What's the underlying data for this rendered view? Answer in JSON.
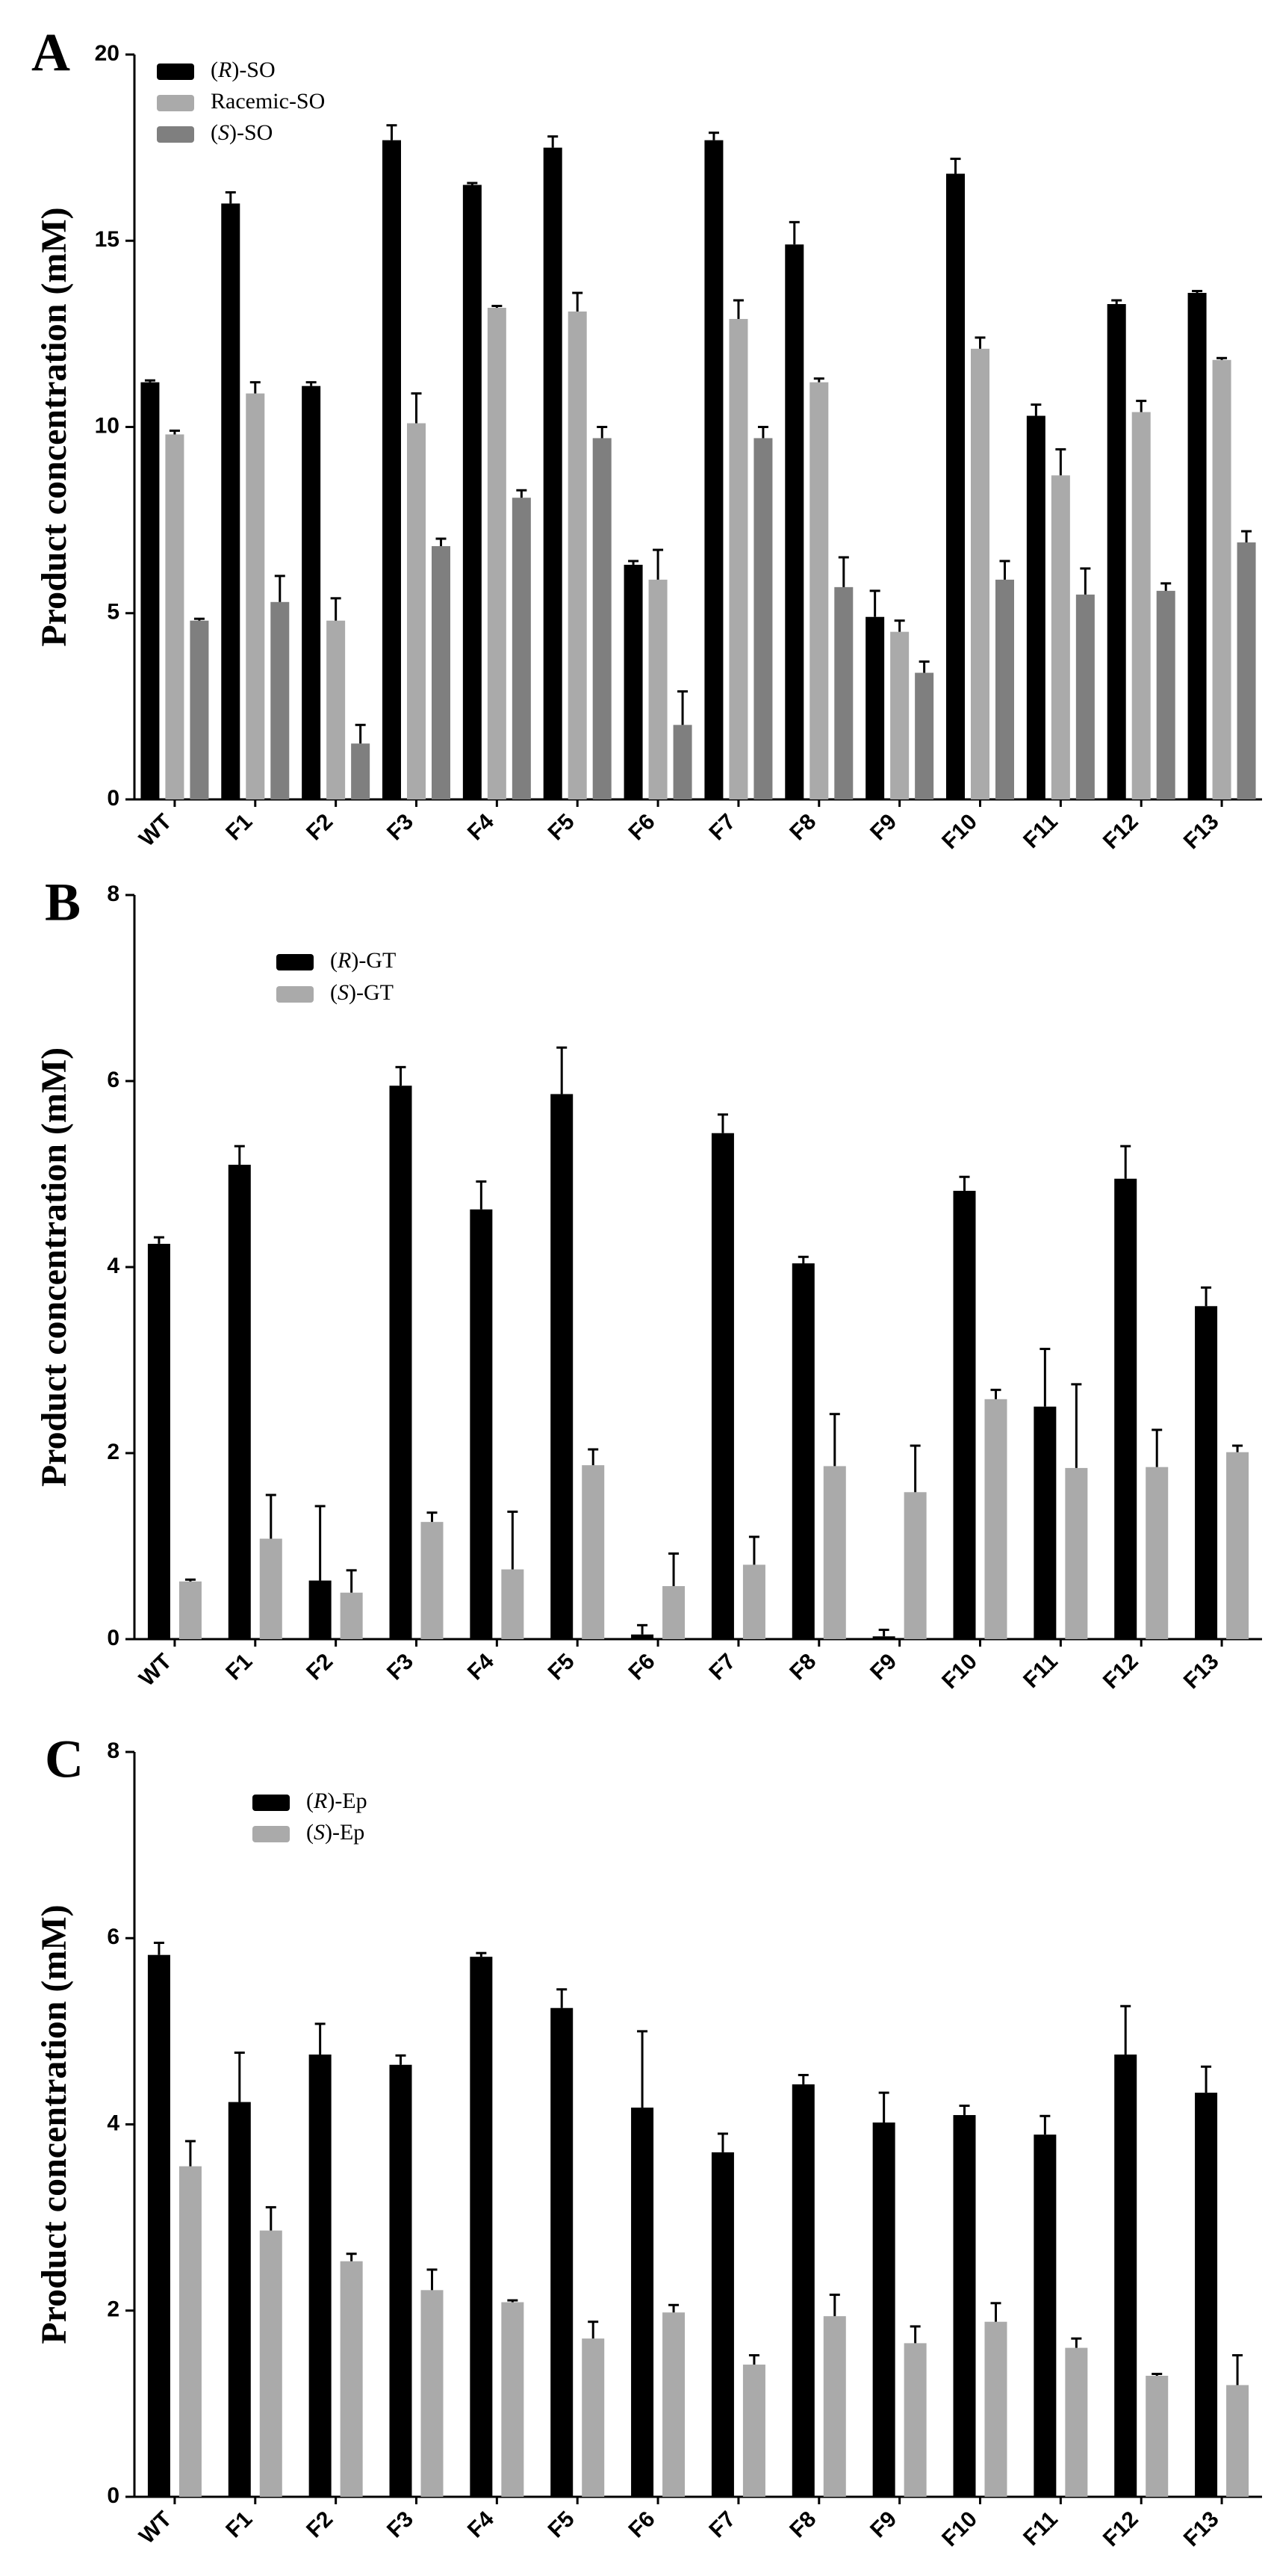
{
  "chart_data": [
    {
      "panel": "A",
      "type": "bar",
      "ylabel": "Product concentration (mM)",
      "xlabel": "",
      "ylim": [
        0,
        20
      ],
      "yticks": [
        0,
        5,
        10,
        15,
        20
      ],
      "categories": [
        "WT",
        "F1",
        "F2",
        "F3",
        "F4",
        "F5",
        "F6",
        "F7",
        "F8",
        "F9",
        "F10",
        "F11",
        "F12",
        "F13"
      ],
      "legend_position": "top-left",
      "series": [
        {
          "name": "(R)-SO",
          "label_prefix": "(",
          "label_italic": "R",
          "label_suffix": ")-SO",
          "color": "#000000",
          "values": [
            11.2,
            16.0,
            11.1,
            17.7,
            16.5,
            17.5,
            6.3,
            17.7,
            14.9,
            4.9,
            16.8,
            10.3,
            13.3,
            13.6
          ],
          "errors": [
            0.05,
            0.3,
            0.1,
            0.4,
            0.05,
            0.3,
            0.1,
            0.2,
            0.6,
            0.7,
            0.4,
            0.3,
            0.1,
            0.05
          ]
        },
        {
          "name": "Racemic-SO",
          "label_prefix": "Racemic-SO",
          "label_italic": "",
          "label_suffix": "",
          "color": "#aaaaaa",
          "values": [
            9.8,
            10.9,
            4.8,
            10.1,
            13.2,
            13.1,
            5.9,
            12.9,
            11.2,
            4.5,
            12.1,
            8.7,
            10.4,
            11.8
          ],
          "errors": [
            0.1,
            0.3,
            0.6,
            0.8,
            0.05,
            0.5,
            0.8,
            0.5,
            0.1,
            0.3,
            0.3,
            0.7,
            0.3,
            0.05
          ]
        },
        {
          "name": "(S)-SO",
          "label_prefix": "(",
          "label_italic": "S",
          "label_suffix": ")-SO",
          "color": "#7f7f7f",
          "values": [
            4.8,
            5.3,
            1.5,
            6.8,
            8.1,
            9.7,
            2.0,
            9.7,
            5.7,
            3.4,
            5.9,
            5.5,
            5.6,
            6.9
          ],
          "errors": [
            0.05,
            0.7,
            0.5,
            0.2,
            0.2,
            0.3,
            0.9,
            0.3,
            0.8,
            0.3,
            0.5,
            0.7,
            0.2,
            0.3
          ]
        }
      ]
    },
    {
      "panel": "B",
      "type": "bar",
      "ylabel": "Product concentration (mM)",
      "xlabel": "",
      "ylim": [
        0,
        8
      ],
      "yticks": [
        0,
        2,
        4,
        6,
        8
      ],
      "categories": [
        "WT",
        "F1",
        "F2",
        "F3",
        "F4",
        "F5",
        "F6",
        "F7",
        "F8",
        "F9",
        "F10",
        "F11",
        "F12",
        "F13"
      ],
      "legend_position": "top-left",
      "series": [
        {
          "name": "(R)-GT",
          "label_prefix": "(",
          "label_italic": "R",
          "label_suffix": ")-GT",
          "color": "#000000",
          "values": [
            4.25,
            5.1,
            0.63,
            5.95,
            4.62,
            5.86,
            0.05,
            5.44,
            4.04,
            0.03,
            4.82,
            2.5,
            4.95,
            3.58
          ],
          "errors": [
            0.07,
            0.2,
            0.8,
            0.2,
            0.3,
            0.5,
            0.1,
            0.2,
            0.07,
            0.07,
            0.15,
            0.62,
            0.35,
            0.2
          ]
        },
        {
          "name": "(S)-GT",
          "label_prefix": "(",
          "label_italic": "S",
          "label_suffix": ")-GT",
          "color": "#aaaaaa",
          "values": [
            0.62,
            1.08,
            0.5,
            1.26,
            0.75,
            1.87,
            0.57,
            0.8,
            1.86,
            1.58,
            2.58,
            1.84,
            1.85,
            2.01
          ],
          "errors": [
            0.02,
            0.47,
            0.24,
            0.1,
            0.62,
            0.17,
            0.35,
            0.3,
            0.56,
            0.5,
            0.1,
            0.9,
            0.4,
            0.07
          ]
        }
      ]
    },
    {
      "panel": "C",
      "type": "bar",
      "ylabel": "Product concentration (mM)",
      "xlabel": "",
      "ylim": [
        0,
        8
      ],
      "yticks": [
        0,
        2,
        4,
        6,
        8
      ],
      "categories": [
        "WT",
        "F1",
        "F2",
        "F3",
        "F4",
        "F5",
        "F6",
        "F7",
        "F8",
        "F9",
        "F10",
        "F11",
        "F12",
        "F13"
      ],
      "legend_position": "top-left",
      "series": [
        {
          "name": "(R)-Ep",
          "label_prefix": "(",
          "label_italic": "R",
          "label_suffix": ")-Ep",
          "color": "#000000",
          "values": [
            5.82,
            4.24,
            4.75,
            4.64,
            5.8,
            5.25,
            4.18,
            3.7,
            4.43,
            4.02,
            4.1,
            3.89,
            4.75,
            4.34
          ],
          "errors": [
            0.13,
            0.53,
            0.33,
            0.1,
            0.04,
            0.2,
            0.82,
            0.2,
            0.1,
            0.32,
            0.1,
            0.2,
            0.52,
            0.28
          ]
        },
        {
          "name": "(S)-Ep",
          "label_prefix": "(",
          "label_italic": "S",
          "label_suffix": ")-Ep",
          "color": "#aaaaaa",
          "values": [
            3.55,
            2.86,
            2.53,
            2.22,
            2.09,
            1.7,
            1.98,
            1.42,
            1.94,
            1.65,
            1.88,
            1.6,
            1.3,
            1.2
          ],
          "errors": [
            0.27,
            0.25,
            0.08,
            0.22,
            0.02,
            0.18,
            0.08,
            0.1,
            0.23,
            0.18,
            0.2,
            0.1,
            0.02,
            0.32
          ]
        }
      ]
    }
  ]
}
